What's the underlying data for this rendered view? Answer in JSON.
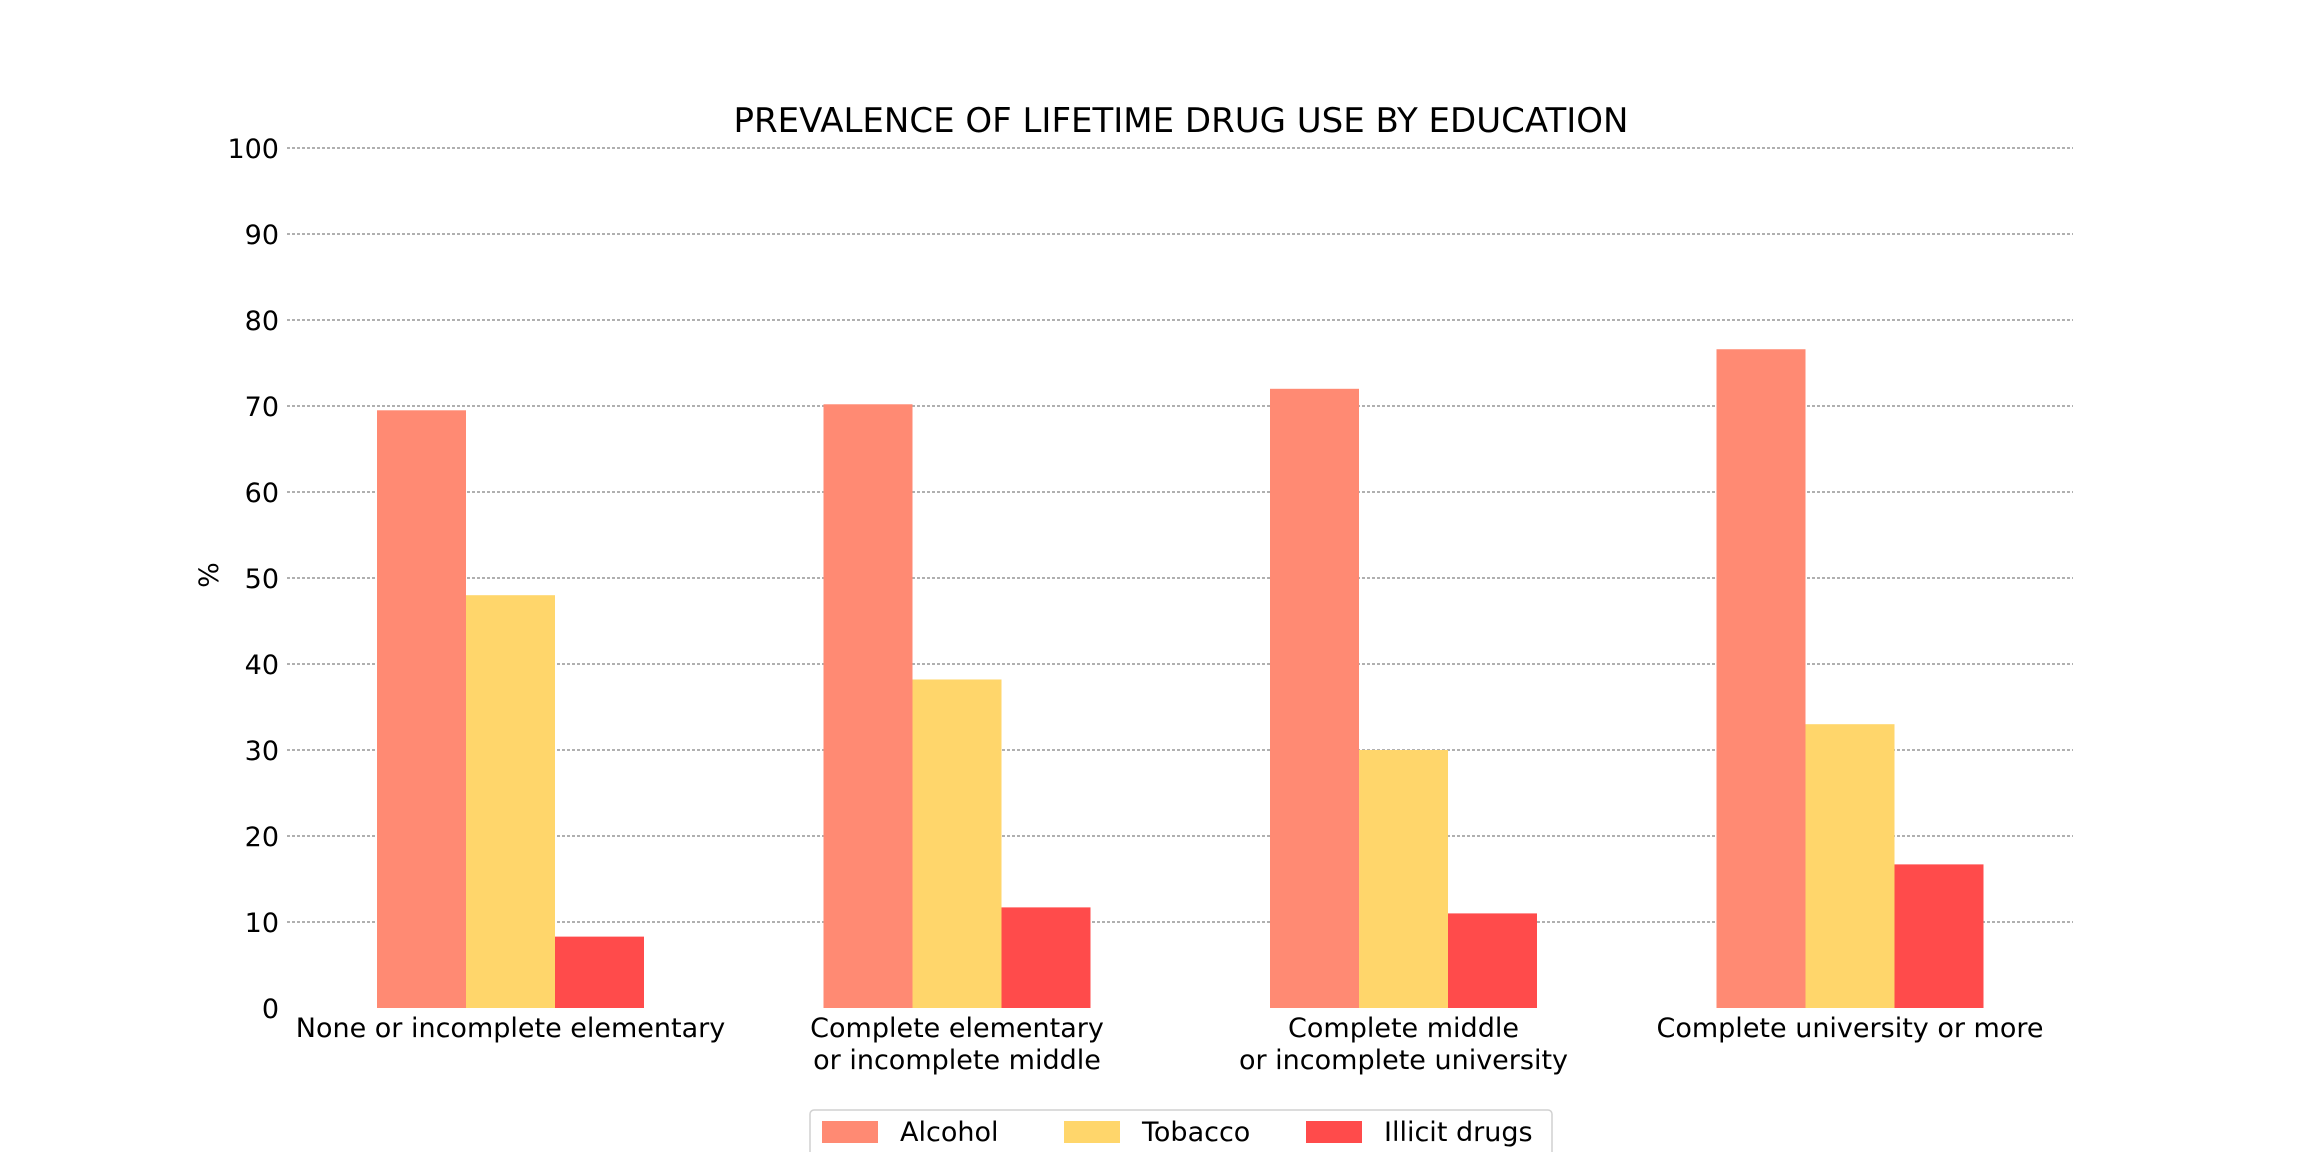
{
  "chart_data": {
    "type": "bar",
    "title": "PREVALENCE OF LIFETIME DRUG USE BY EDUCATION",
    "xlabel": "",
    "ylabel": "%",
    "ylim": [
      0,
      100
    ],
    "yticks": [
      0,
      10,
      20,
      30,
      40,
      50,
      60,
      70,
      80,
      90,
      100
    ],
    "grid": true,
    "legend_position": "bottom-center",
    "categories": [
      [
        "None or incomplete elementary"
      ],
      [
        "Complete elementary",
        "or incomplete middle"
      ],
      [
        "Complete middle",
        "or incomplete university"
      ],
      [
        "Complete university or more"
      ]
    ],
    "series": [
      {
        "name": "Alcohol",
        "color": "#FF8A73",
        "values": [
          69.5,
          70.2,
          72.0,
          76.6
        ]
      },
      {
        "name": "Tobacco",
        "color": "#FFD66B",
        "values": [
          48.0,
          38.2,
          30.0,
          33.0
        ]
      },
      {
        "name": "Illicit drugs",
        "color": "#FF4B4B",
        "values": [
          8.3,
          11.7,
          11.0,
          16.7
        ]
      }
    ]
  }
}
